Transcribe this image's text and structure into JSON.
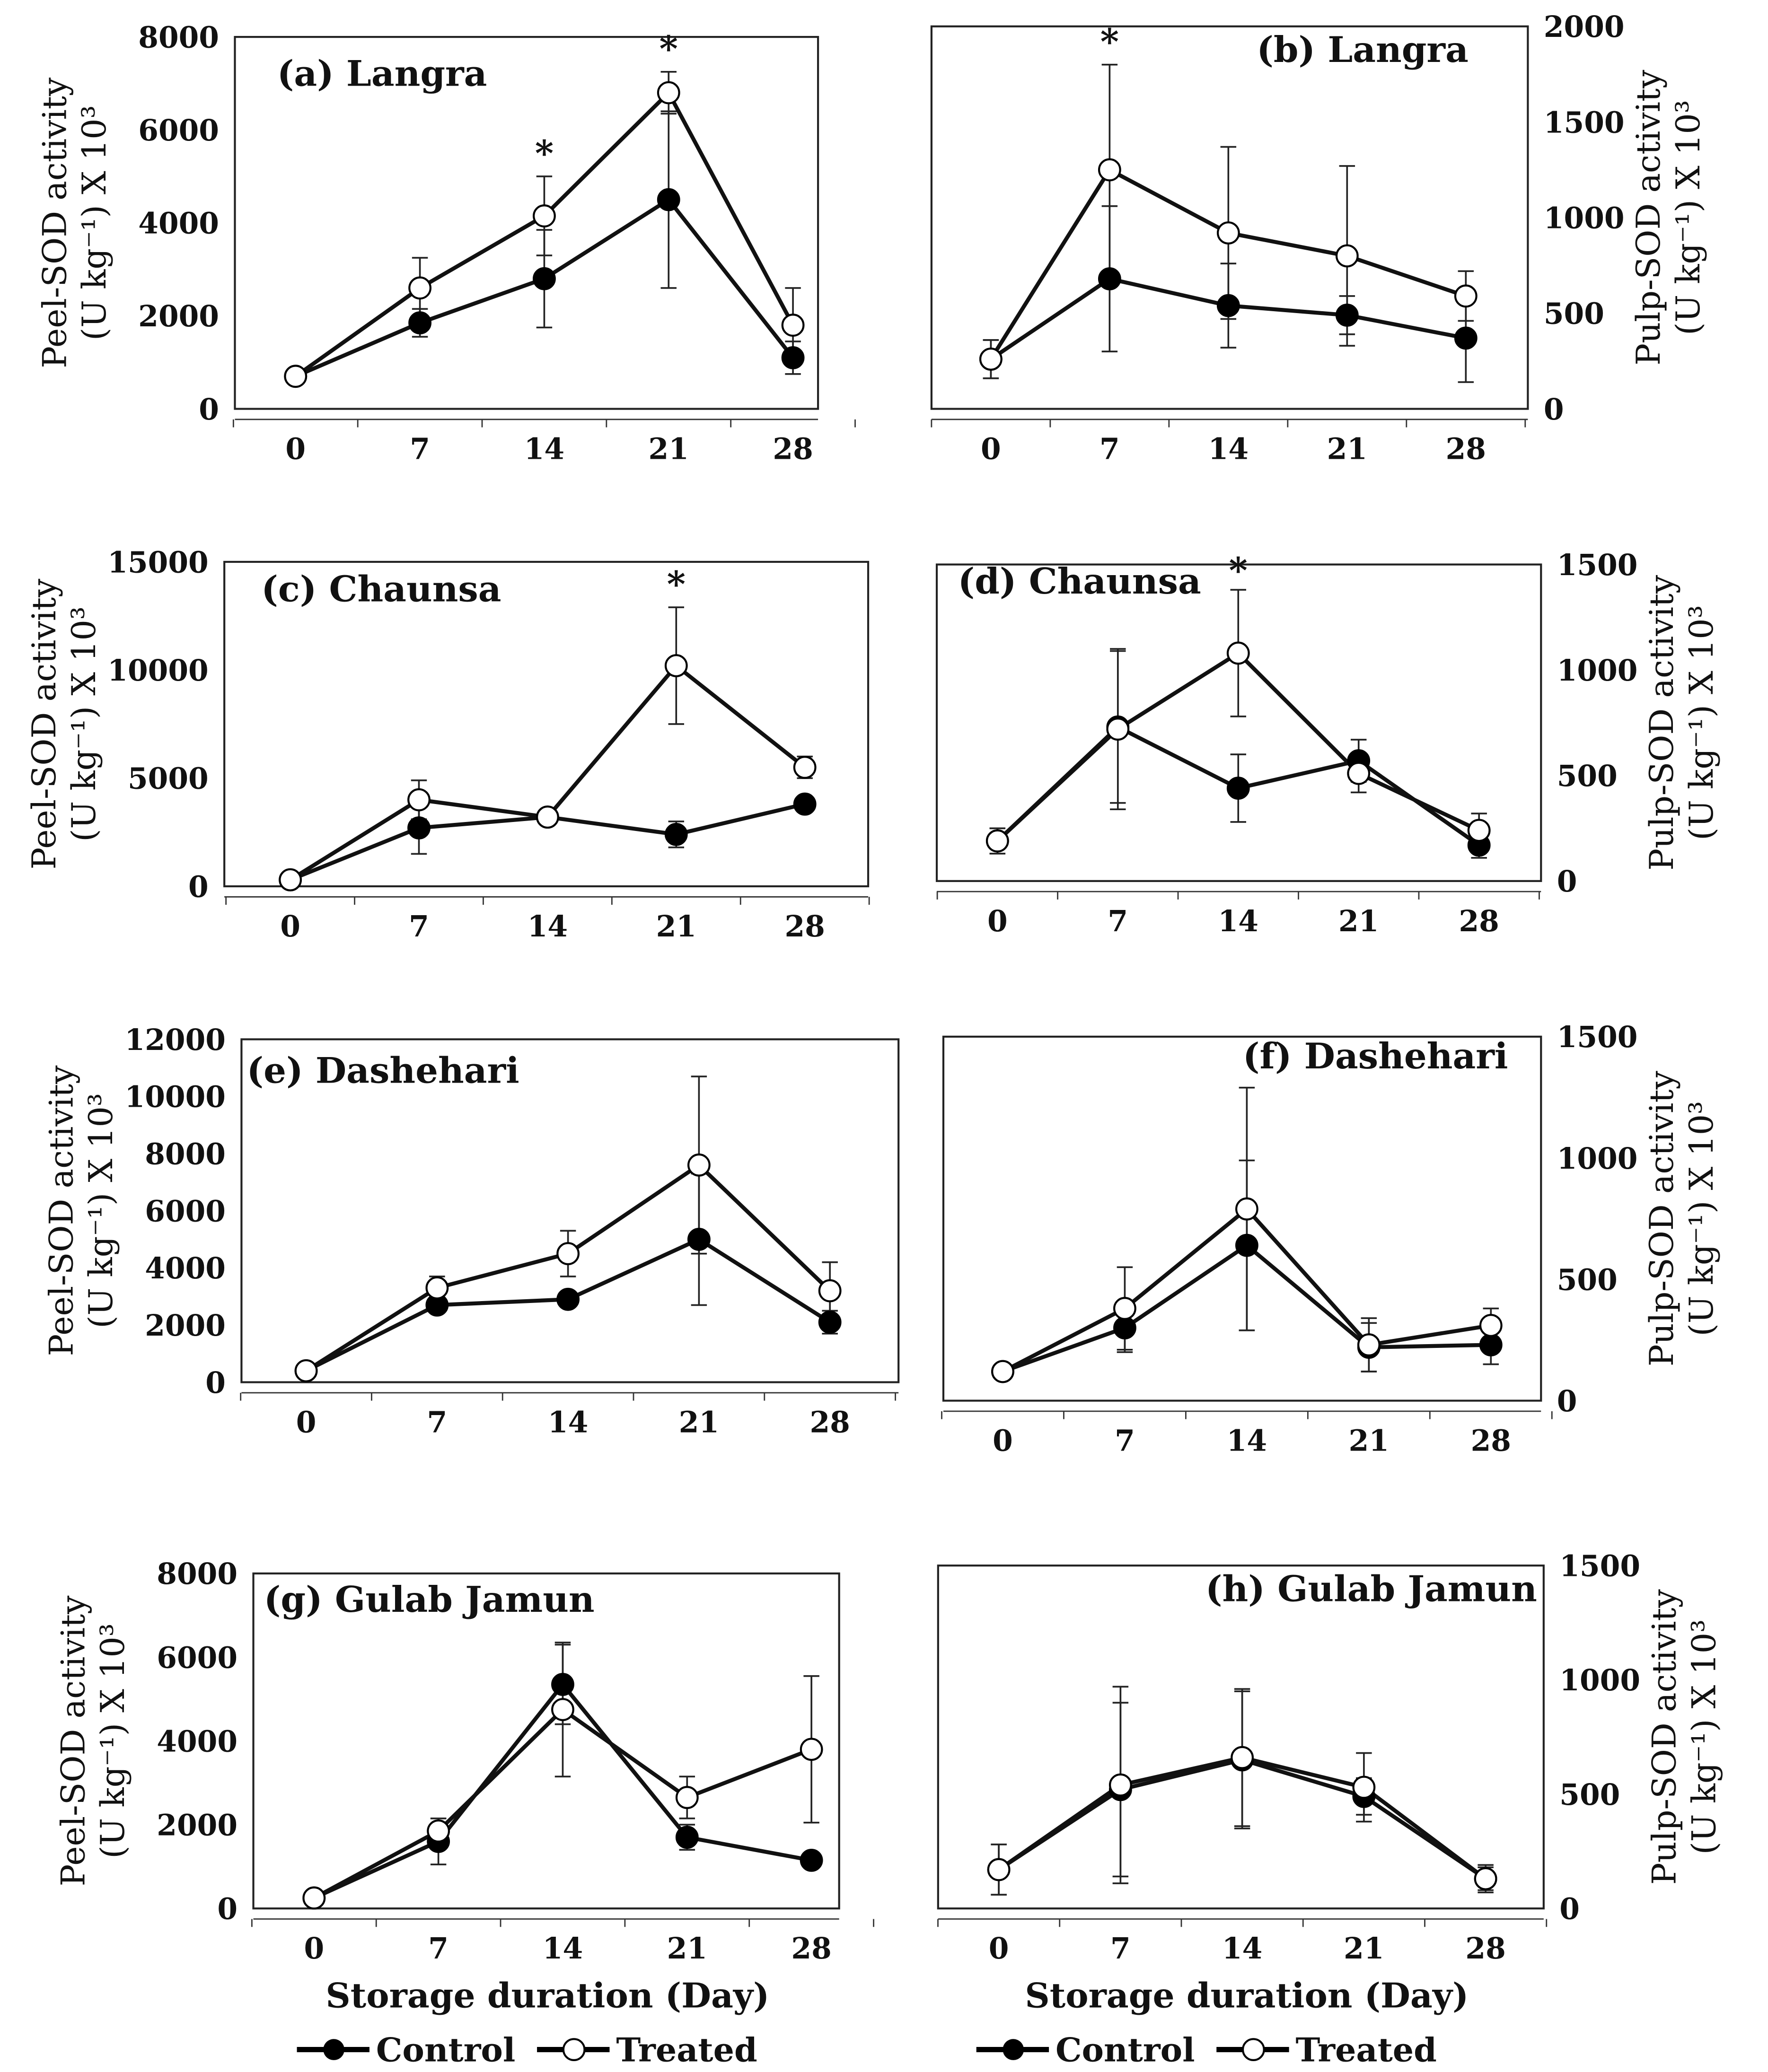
{
  "chart_data": [
    {
      "type": "line",
      "title": "(a) Langra",
      "ylabel": [
        "Peel-SOD activity",
        "(U kg⁻¹) X 10³"
      ],
      "ylim": [
        0,
        8000
      ],
      "yticks": [
        "0",
        "2000",
        "4000",
        "6000",
        "8000"
      ],
      "categories": [
        "0",
        "7",
        "14",
        "21",
        "28"
      ],
      "asterisks": [
        "14",
        "21"
      ],
      "series": [
        {
          "name": "Control",
          "values": [
            700,
            1850,
            2800,
            4500,
            1100
          ],
          "errors": [
            100,
            300,
            1050,
            1900,
            350
          ]
        },
        {
          "name": "Treated",
          "values": [
            700,
            2600,
            4150,
            6800,
            1800
          ],
          "errors": [
            100,
            650,
            850,
            450,
            800
          ]
        }
      ]
    },
    {
      "type": "line",
      "title": "(b) Langra",
      "ylabel": [
        "Pulp-SOD activity",
        "(U kg⁻¹) X 10³"
      ],
      "ylim": [
        0,
        2000
      ],
      "yticks": [
        "0",
        "500",
        "1000",
        "1500",
        "2000"
      ],
      "categories": [
        "0",
        "7",
        "14",
        "21",
        "28"
      ],
      "asterisks": [
        "7"
      ],
      "series": [
        {
          "name": "Control",
          "values": [
            260,
            680,
            540,
            490,
            370
          ],
          "errors": [
            100,
            380,
            220,
            100,
            230
          ]
        },
        {
          "name": "Treated",
          "values": [
            260,
            1250,
            920,
            800,
            590
          ],
          "errors": [
            100,
            550,
            450,
            470,
            130
          ]
        }
      ]
    },
    {
      "type": "line",
      "title": "(c) Chaunsa",
      "ylabel": [
        "Peel-SOD activity",
        "(U kg⁻¹) X 10³"
      ],
      "ylim": [
        0,
        15000
      ],
      "yticks": [
        "0",
        "5000",
        "10000",
        "15000"
      ],
      "categories": [
        "0",
        "7",
        "14",
        "21",
        "28"
      ],
      "asterisks": [
        "21"
      ],
      "series": [
        {
          "name": "Control",
          "values": [
            300,
            2700,
            3200,
            2400,
            3800
          ],
          "errors": [
            100,
            1200,
            200,
            600,
            200
          ]
        },
        {
          "name": "Treated",
          "values": [
            300,
            4000,
            3200,
            10200,
            5500
          ],
          "errors": [
            100,
            900,
            200,
            2700,
            500
          ]
        }
      ]
    },
    {
      "type": "line",
      "title": "(d) Chaunsa",
      "ylabel": [
        "Pulp-SOD activity",
        "(U kg⁻¹) X 10³"
      ],
      "ylim": [
        0,
        1500
      ],
      "yticks": [
        "0",
        "500",
        "1000",
        "1500"
      ],
      "categories": [
        "0",
        "7",
        "14",
        "21",
        "28"
      ],
      "asterisks": [
        "14"
      ],
      "series": [
        {
          "name": "Control",
          "values": [
            190,
            730,
            440,
            570,
            170
          ],
          "errors": [
            60,
            360,
            160,
            100,
            60
          ]
        },
        {
          "name": "Treated",
          "values": [
            190,
            720,
            1080,
            510,
            240
          ],
          "errors": [
            60,
            380,
            300,
            90,
            80
          ]
        }
      ]
    },
    {
      "type": "line",
      "title": "(e) Dashehari",
      "ylabel": [
        "Peel-SOD activity",
        "(U kg⁻¹) X 10³"
      ],
      "ylim": [
        0,
        12000
      ],
      "yticks": [
        "0",
        "2000",
        "4000",
        "6000",
        "8000",
        "10000",
        "12000"
      ],
      "categories": [
        "0",
        "7",
        "14",
        "21",
        "28"
      ],
      "asterisks": [],
      "series": [
        {
          "name": "Control",
          "values": [
            400,
            2700,
            2900,
            5000,
            2100
          ],
          "errors": [
            100,
            200,
            200,
            2300,
            400
          ]
        },
        {
          "name": "Treated",
          "values": [
            400,
            3300,
            4500,
            7600,
            3200
          ],
          "errors": [
            100,
            400,
            800,
            3100,
            1000
          ]
        }
      ]
    },
    {
      "type": "line",
      "title": "(f) Dashehari",
      "ylabel": [
        "Pulp-SOD activity",
        "(U kg⁻¹) X 10³"
      ],
      "ylim": [
        0,
        1500
      ],
      "yticks": [
        "0",
        "500",
        "1000",
        "1500"
      ],
      "categories": [
        "0",
        "7",
        "14",
        "21",
        "28"
      ],
      "asterisks": [],
      "series": [
        {
          "name": "Control",
          "values": [
            120,
            300,
            640,
            220,
            230
          ],
          "errors": [
            30,
            100,
            350,
            100,
            80
          ]
        },
        {
          "name": "Treated",
          "values": [
            120,
            380,
            790,
            230,
            310
          ],
          "errors": [
            30,
            170,
            500,
            110,
            70
          ]
        }
      ]
    },
    {
      "type": "line",
      "title": "(g) Gulab Jamun",
      "ylabel": [
        "Peel-SOD activity",
        "(U kg⁻¹) X 10³"
      ],
      "ylim": [
        0,
        8000
      ],
      "yticks": [
        "0",
        "2000",
        "4000",
        "6000",
        "8000"
      ],
      "categories": [
        "0",
        "7",
        "14",
        "21",
        "28"
      ],
      "asterisks": [],
      "series": [
        {
          "name": "Control",
          "values": [
            250,
            1600,
            5350,
            1700,
            1150
          ],
          "errors": [
            60,
            550,
            950,
            300,
            100
          ]
        },
        {
          "name": "Treated",
          "values": [
            250,
            1850,
            4750,
            2650,
            3800
          ],
          "errors": [
            60,
            300,
            1600,
            500,
            1750
          ]
        }
      ]
    },
    {
      "type": "line",
      "title": "(h) Gulab Jamun",
      "ylabel": [
        "Pulp-SOD activity",
        "(U kg⁻¹) X 10³"
      ],
      "ylim": [
        0,
        1500
      ],
      "yticks": [
        "0",
        "500",
        "1000",
        "1500"
      ],
      "categories": [
        "0",
        "7",
        "14",
        "21",
        "28"
      ],
      "asterisks": [],
      "series": [
        {
          "name": "Control",
          "values": [
            170,
            520,
            650,
            490,
            130
          ],
          "errors": [
            110,
            380,
            300,
            80,
            50
          ]
        },
        {
          "name": "Treated",
          "values": [
            170,
            540,
            660,
            530,
            130
          ],
          "errors": [
            110,
            430,
            300,
            150,
            60
          ]
        }
      ]
    }
  ],
  "xlabel": "Storage duration (Day)",
  "legend": [
    "Control",
    "Treated"
  ]
}
